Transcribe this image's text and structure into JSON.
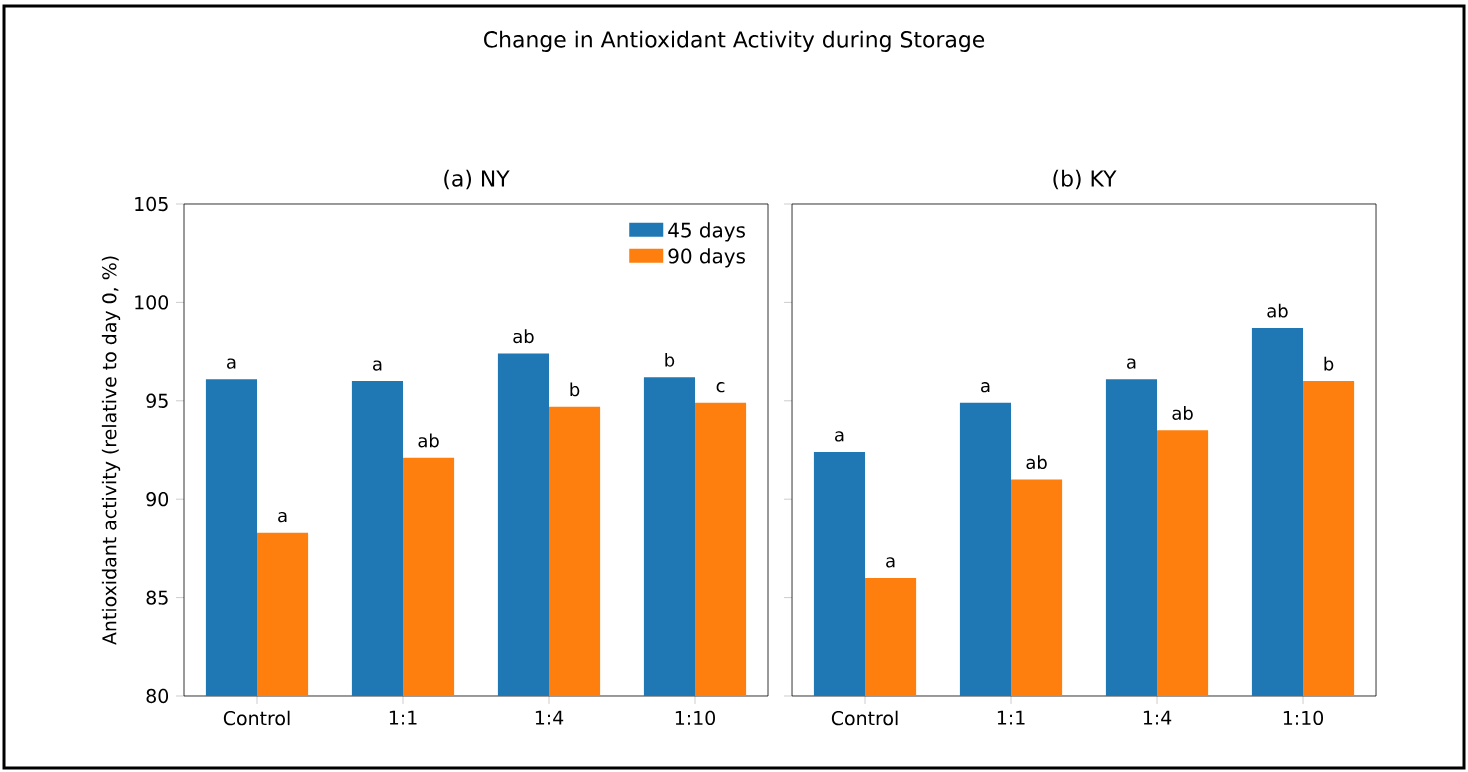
{
  "chart_data": [
    {
      "type": "bar",
      "title": "Change in Antioxidant Activity during Storage",
      "subtitle": "(a) NY",
      "ylabel": "Antioxidant activity (relative to day 0, %)",
      "categories": [
        "Control",
        "1:1",
        "1:4",
        "1:10"
      ],
      "series": [
        {
          "name": "45 days",
          "color": "#1f77b4",
          "values": [
            96.1,
            96.0,
            97.4,
            96.2
          ]
        },
        {
          "name": "90 days",
          "color": "#ff7f0e",
          "values": [
            88.3,
            92.1,
            94.7,
            94.9
          ]
        }
      ],
      "ylim": [
        80,
        105
      ],
      "yticks": [
        80,
        85,
        90,
        95,
        100,
        105
      ],
      "legend": "top right",
      "grid": false,
      "annotations": [
        {
          "text": "a",
          "x": "Control",
          "y": 96.1
        },
        {
          "text": "a",
          "x": "Control",
          "y": 88.3
        },
        {
          "text": "a",
          "x": "1:1",
          "y": 96.0
        },
        {
          "text": "ab",
          "x": "1:1",
          "y": 92.1
        },
        {
          "text": "ab",
          "x": "1:4",
          "y": 97.4
        },
        {
          "text": "b",
          "x": "1:4",
          "y": 94.7
        },
        {
          "text": "b",
          "x": "1:10",
          "y": 96.2
        },
        {
          "text": "c",
          "x": "1:10",
          "y": 94.9
        }
      ]
    },
    {
      "type": "bar",
      "subtitle": "(b) KY",
      "categories": [
        "Control",
        "1:1",
        "1:4",
        "1:10"
      ],
      "series": [
        {
          "color": "#1f77b4",
          "values": [
            92.4,
            94.9,
            96.1,
            98.7
          ]
        },
        {
          "color": "#ff7f0e",
          "values": [
            86.0,
            91.0,
            93.5,
            96.0
          ]
        }
      ],
      "ylim": [
        80,
        105
      ],
      "yticks": [
        80,
        85,
        90,
        95,
        100,
        105
      ],
      "tick_labels": "x",
      "legend": false,
      "grid": false,
      "annotations": [
        {
          "text": "a",
          "x": "Control",
          "y": 92.4
        },
        {
          "text": "a",
          "x": "Control",
          "y": 86.0
        },
        {
          "text": "a",
          "x": "1:1",
          "y": 94.9
        },
        {
          "text": "ab",
          "x": "1:1",
          "y": 91.0
        },
        {
          "text": "a",
          "x": "1:4",
          "y": 96.1
        },
        {
          "text": "ab",
          "x": "1:4",
          "y": 93.5
        },
        {
          "text": "ab",
          "x": "1:10",
          "y": 98.7
        },
        {
          "text": "b",
          "x": "1:10",
          "y": 96.0
        }
      ]
    }
  ]
}
